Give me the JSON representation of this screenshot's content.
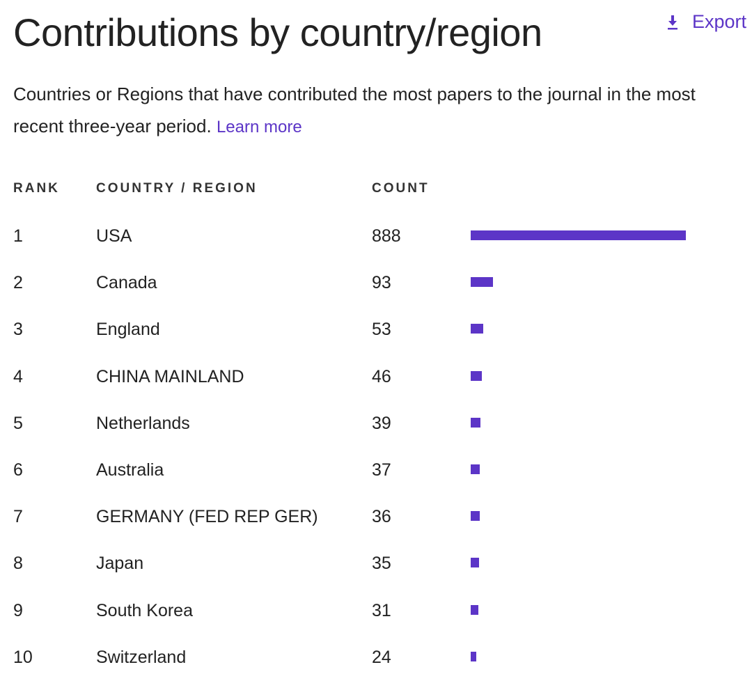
{
  "header": {
    "title": "Contributions by country/region",
    "export_label": "Export"
  },
  "description": {
    "text": "Countries or Regions that have contributed the most papers to the journal in the most recent three-year period. ",
    "learn_more": "Learn more"
  },
  "table": {
    "columns": {
      "rank": "RANK",
      "country": "COUNTRY / REGION",
      "count": "COUNT"
    }
  },
  "colors": {
    "accent": "#5c35c7"
  },
  "chart_data": {
    "type": "bar",
    "orientation": "horizontal",
    "rows": [
      {
        "rank": "1",
        "country": "USA",
        "count": 888
      },
      {
        "rank": "2",
        "country": "Canada",
        "count": 93
      },
      {
        "rank": "3",
        "country": "England",
        "count": 53
      },
      {
        "rank": "4",
        "country": "CHINA MAINLAND",
        "count": 46
      },
      {
        "rank": "5",
        "country": "Netherlands",
        "count": 39
      },
      {
        "rank": "6",
        "country": "Australia",
        "count": 37
      },
      {
        "rank": "7",
        "country": "GERMANY (FED REP GER)",
        "count": 36
      },
      {
        "rank": "8",
        "country": "Japan",
        "count": 35
      },
      {
        "rank": "9",
        "country": "South Korea",
        "count": 31
      },
      {
        "rank": "10",
        "country": "Switzerland",
        "count": 24
      }
    ]
  }
}
